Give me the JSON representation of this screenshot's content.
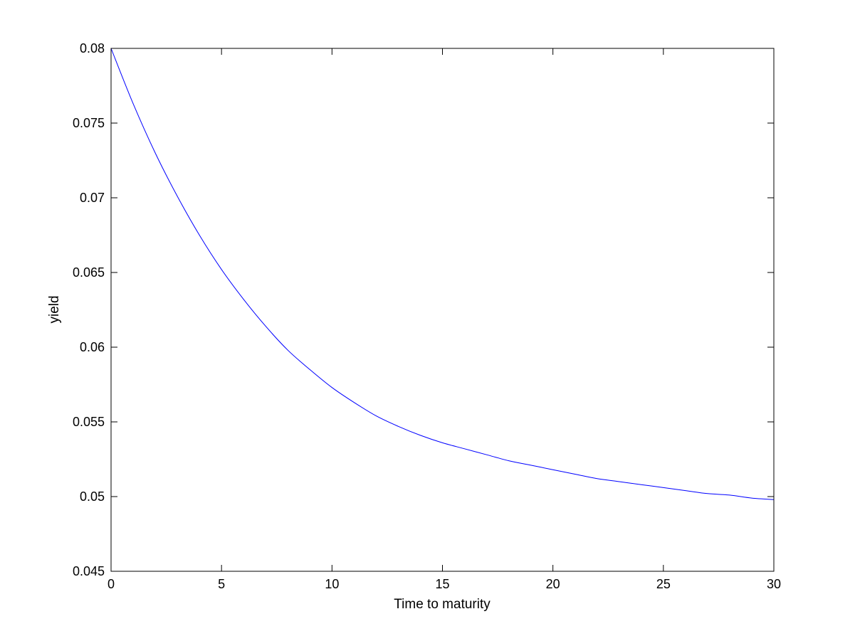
{
  "chart_data": {
    "type": "line",
    "title": "",
    "xlabel": "Time to maturity",
    "ylabel": "yield",
    "xlim": [
      0,
      30
    ],
    "ylim": [
      0.045,
      0.08
    ],
    "xticks": [
      0,
      5,
      10,
      15,
      20,
      25,
      30
    ],
    "xtick_labels": [
      "0",
      "5",
      "10",
      "15",
      "20",
      "25",
      "30"
    ],
    "yticks": [
      0.045,
      0.05,
      0.055,
      0.06,
      0.065,
      0.07,
      0.075,
      0.08
    ],
    "ytick_labels": [
      "0.045",
      "0.05",
      "0.055",
      "0.06",
      "0.065",
      "0.07",
      "0.075",
      "0.08"
    ],
    "grid": false,
    "legend": "none",
    "series": [
      {
        "color": "#0000ff",
        "x": [
          0,
          1,
          2,
          3,
          4,
          5,
          6,
          7,
          8,
          9,
          10,
          11,
          12,
          13,
          14,
          15,
          16,
          17,
          18,
          19,
          20,
          21,
          22,
          23,
          24,
          25,
          26,
          27,
          28,
          29,
          30
        ],
        "y": [
          0.08,
          0.0763,
          0.073,
          0.0701,
          0.0675,
          0.0652,
          0.0632,
          0.0614,
          0.0598,
          0.0585,
          0.0573,
          0.0563,
          0.0554,
          0.0547,
          0.0541,
          0.0536,
          0.0532,
          0.0528,
          0.0524,
          0.0521,
          0.0518,
          0.0515,
          0.0512,
          0.051,
          0.0508,
          0.0506,
          0.0504,
          0.0502,
          0.0501,
          0.0499,
          0.0498
        ]
      }
    ]
  }
}
